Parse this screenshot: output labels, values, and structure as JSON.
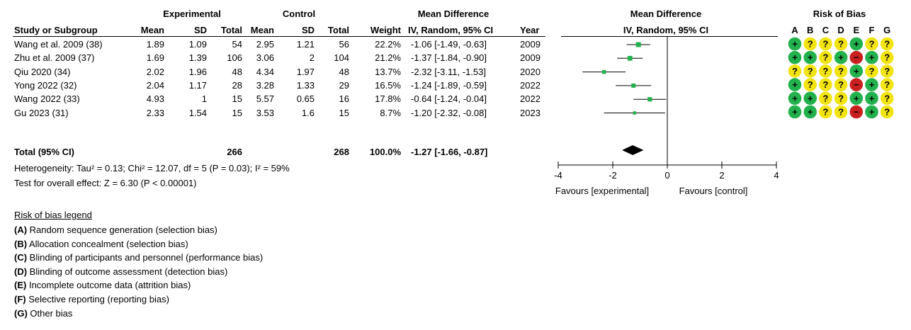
{
  "header": {
    "experimental": "Experimental",
    "control": "Control",
    "mean_difference": "Mean Difference",
    "study": "Study or Subgroup",
    "mean": "Mean",
    "sd": "SD",
    "total": "Total",
    "weight": "Weight",
    "method": "IV, Random, 95% CI",
    "year": "Year",
    "plot_title": "Mean Difference",
    "plot_method": "IV, Random, 95% CI",
    "rob_title": "Risk of Bias",
    "rob_letters": [
      "A",
      "B",
      "C",
      "D",
      "E",
      "F",
      "G"
    ]
  },
  "studies": [
    {
      "name": "Wang et al. 2009 (38)",
      "e_mean": "1.89",
      "e_sd": "1.09",
      "e_total": "54",
      "c_mean": "2.95",
      "c_sd": "1.21",
      "c_total": "56",
      "weight": "22.2%",
      "ci": "-1.06 [-1.49, -0.63]",
      "year": "2009"
    },
    {
      "name": "Zhu et al. 2009 (37)",
      "e_mean": "1.69",
      "e_sd": "1.39",
      "e_total": "106",
      "c_mean": "3.06",
      "c_sd": "2",
      "c_total": "104",
      "weight": "21.2%",
      "ci": "-1.37 [-1.84, -0.90]",
      "year": "2009"
    },
    {
      "name": "Qiu 2020 (34)",
      "e_mean": "2.02",
      "e_sd": "1.96",
      "e_total": "48",
      "c_mean": "4.34",
      "c_sd": "1.97",
      "c_total": "48",
      "weight": "13.7%",
      "ci": "-2.32 [-3.11, -1.53]",
      "year": "2020"
    },
    {
      "name": "Yong 2022 (32)",
      "e_mean": "2.04",
      "e_sd": "1.17",
      "e_total": "28",
      "c_mean": "3.28",
      "c_sd": "1.33",
      "c_total": "29",
      "weight": "16.5%",
      "ci": "-1.24 [-1.89, -0.59]",
      "year": "2022"
    },
    {
      "name": "Wang 2022 (33)",
      "e_mean": "4.93",
      "e_sd": "1",
      "e_total": "15",
      "c_mean": "5.57",
      "c_sd": "0.65",
      "c_total": "16",
      "weight": "17.8%",
      "ci": "-0.64 [-1.24, -0.04]",
      "year": "2022"
    },
    {
      "name": "Gu 2023 (31)",
      "e_mean": "2.33",
      "e_sd": "1.54",
      "e_total": "15",
      "c_mean": "3.53",
      "c_sd": "1.6",
      "c_total": "15",
      "weight": "8.7%",
      "ci": "-1.20 [-2.32, -0.08]",
      "year": "2023"
    }
  ],
  "total": {
    "label": "Total (95% CI)",
    "e_total": "266",
    "c_total": "268",
    "weight": "100.0%",
    "ci": "-1.27 [-1.66, -0.87]"
  },
  "heterogeneity": "Heterogeneity: Tau² = 0.13; Chi² = 12.07, df = 5 (P = 0.03); I² = 59%",
  "overall_effect": "Test for overall effect: Z = 6.30 (P < 0.00001)",
  "favours_left": "Favours [experimental]",
  "favours_right": "Favours [control]",
  "legend": {
    "title": "Risk of bias legend",
    "items": [
      {
        "key": "(A)",
        "text": " Random sequence generation (selection bias)"
      },
      {
        "key": "(B)",
        "text": " Allocation concealment (selection bias)"
      },
      {
        "key": "(C)",
        "text": " Blinding of participants and personnel (performance bias)"
      },
      {
        "key": "(D)",
        "text": " Blinding of outcome assessment (detection bias)"
      },
      {
        "key": "(E)",
        "text": " Incomplete outcome data (attrition bias)"
      },
      {
        "key": "(F)",
        "text": " Selective reporting (reporting bias)"
      },
      {
        "key": "(G)",
        "text": " Other bias"
      }
    ]
  },
  "rob_colors": {
    "+": "#22b14c",
    "?": "#f2e313",
    "-": "#c8201e"
  },
  "rob": [
    [
      "+",
      "?",
      "?",
      "?",
      "+",
      "?",
      "?"
    ],
    [
      "+",
      "+",
      "?",
      "+",
      "-",
      "+",
      "?"
    ],
    [
      "?",
      "?",
      "?",
      "?",
      "+",
      "?",
      "?"
    ],
    [
      "+",
      "?",
      "?",
      "?",
      "-",
      "+",
      "?"
    ],
    [
      "+",
      "+",
      "?",
      "?",
      "+",
      "+",
      "?"
    ],
    [
      "+",
      "+",
      "?",
      "?",
      "-",
      "+",
      "?"
    ]
  ],
  "chart_data": {
    "type": "scatter",
    "title": "Mean Difference",
    "subtitle": "IV, Random, 95% CI",
    "xlim": [
      -4,
      4
    ],
    "x_ticks": [
      -4,
      -2,
      0,
      2,
      4
    ],
    "x_tick_labels": [
      "-4",
      "-2",
      "0",
      "2",
      "4"
    ],
    "points": [
      {
        "study": "Wang et al. 2009 (38)",
        "md": -1.06,
        "lo": -1.49,
        "hi": -0.63,
        "weight": 22.2
      },
      {
        "study": "Zhu et al. 2009 (37)",
        "md": -1.37,
        "lo": -1.84,
        "hi": -0.9,
        "weight": 21.2
      },
      {
        "study": "Qiu 2020 (34)",
        "md": -2.32,
        "lo": -3.11,
        "hi": -1.53,
        "weight": 13.7
      },
      {
        "study": "Yong 2022 (32)",
        "md": -1.24,
        "lo": -1.89,
        "hi": -0.59,
        "weight": 16.5
      },
      {
        "study": "Wang 2022 (33)",
        "md": -0.64,
        "lo": -1.24,
        "hi": -0.04,
        "weight": 17.8
      },
      {
        "study": "Gu 2023 (31)",
        "md": -1.2,
        "lo": -2.32,
        "hi": -0.08,
        "weight": 8.7
      }
    ],
    "pooled": {
      "md": -1.27,
      "lo": -1.66,
      "hi": -0.87
    },
    "marker_color": "#22b14c"
  }
}
